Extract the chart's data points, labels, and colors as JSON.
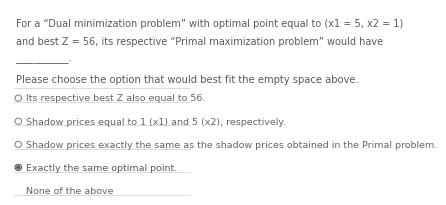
{
  "title_line1": "For a “Dual minimization problem” with optimal point equal to (x1 = 5, x2 = 1)",
  "title_line2": "and best Z = 56, its respective “Primal maximization problem” would have",
  "dash_line": "___________.",
  "instruction": "Please choose the option that would best fit the empty space above.",
  "options": [
    "Its respective best Z also equal to 56.",
    "Shadow prices equal to 1 (x1) and 5 (x2), respectively.",
    "Shadow prices exactly the same as the shadow prices obtained in the Primal problem.",
    "Exactly the same optimal point.",
    "None of the above"
  ],
  "selected_index": 3,
  "bg_color": "#ffffff",
  "text_color": "#5a5a5a",
  "option_color": "#666666",
  "selected_text_color": "#5a5a5a",
  "separator_color": "#cccccc",
  "radio_empty_color": "#888888",
  "radio_filled_color": "#555555",
  "title_fontsize": 7.0,
  "instruction_fontsize": 7.2,
  "option_fontsize": 6.8
}
